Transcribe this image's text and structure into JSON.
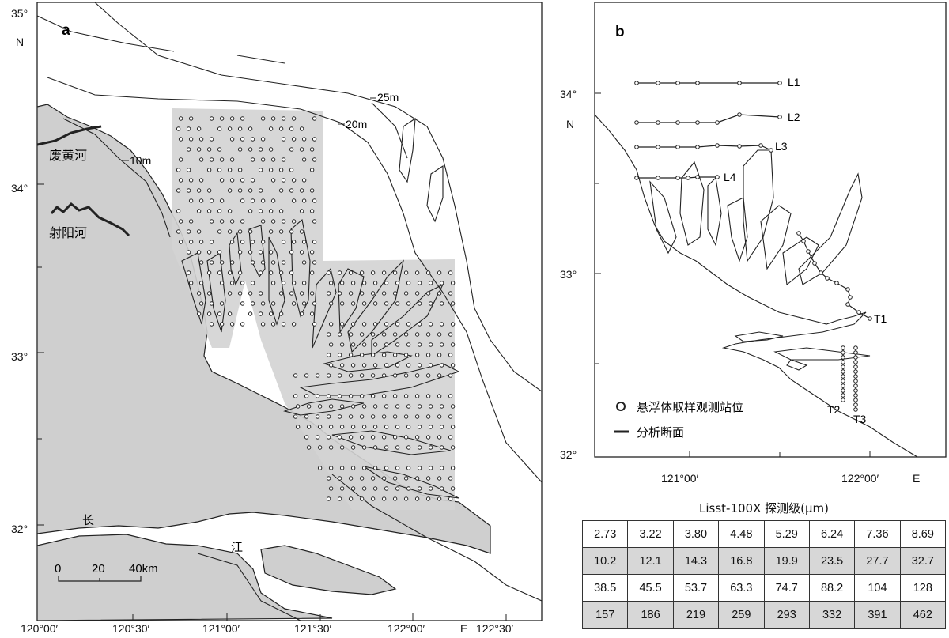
{
  "panel_a": {
    "label": "a",
    "lat_ticks": [
      "35°",
      "34°",
      "33°",
      "32°"
    ],
    "lon_ticks": [
      "120°00′",
      "120°30′",
      "121°00′",
      "121°30′",
      "122°00′",
      "122°30′"
    ],
    "north_label": "N",
    "east_label": "E",
    "depth_labels": [
      "25m",
      "20m",
      "10m"
    ],
    "river_labels": [
      "废黄河",
      "射阳河"
    ],
    "yangtze_chars": [
      "长",
      "江"
    ],
    "scale_ticks": [
      "0",
      "20",
      "40km"
    ],
    "colors": {
      "land": "#cfcfcf",
      "survey_area": "#d3d3d3",
      "lines": "#222222"
    }
  },
  "panel_b": {
    "label": "b",
    "lat_ticks": [
      "34°",
      "33°",
      "32°"
    ],
    "lon_ticks": [
      "121°00′",
      "122°00′"
    ],
    "north_label": "N",
    "east_label": "E",
    "transect_labels": [
      "L1",
      "L2",
      "L3",
      "L4",
      "T1",
      "T2",
      "T3"
    ],
    "legend": {
      "stations": "悬浮体取样观测站位",
      "sections": "分析断面"
    }
  },
  "table": {
    "title": "Lisst-100X 探测级(μm)",
    "rows": [
      [
        "2.73",
        "3.22",
        "3.80",
        "4.48",
        "5.29",
        "6.24",
        "7.36",
        "8.69"
      ],
      [
        "10.2",
        "12.1",
        "14.3",
        "16.8",
        "19.9",
        "23.5",
        "27.7",
        "32.7"
      ],
      [
        "38.5",
        "45.5",
        "53.7",
        "63.3",
        "74.7",
        "88.2",
        "104",
        "128"
      ],
      [
        "157",
        "186",
        "219",
        "259",
        "293",
        "332",
        "391",
        "462"
      ]
    ]
  }
}
